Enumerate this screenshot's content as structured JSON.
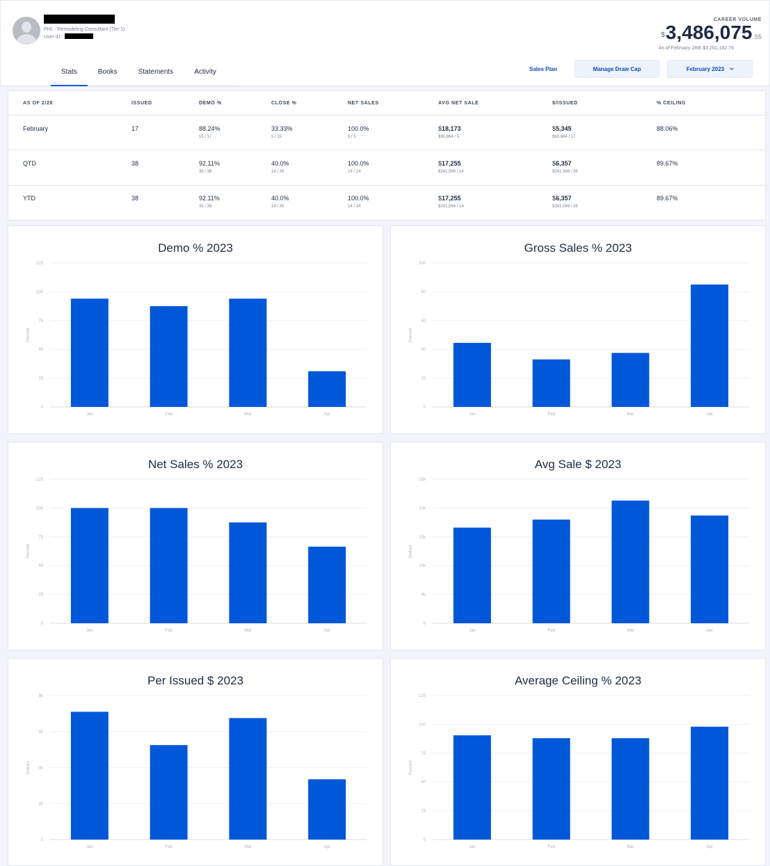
{
  "profile": {
    "role": "PHL · Remodeling Consultant (Tier 1)",
    "user_id_label": "User ID:"
  },
  "career": {
    "label": "CAREER VOLUME",
    "currency": "$",
    "amount": "3,486,075",
    "cents": ".55",
    "sub": "As of February 28th $3,261,182.76"
  },
  "tabs": [
    "Stats",
    "Books",
    "Statements",
    "Activity"
  ],
  "actions": {
    "sales_plan": "Sales Plan",
    "draw_cap": "Manage Draw Cap",
    "period": "February 2023"
  },
  "stats": {
    "headers": [
      "AS OF 2/28",
      "ISSUED",
      "DEMO %",
      "CLOSE %",
      "NET SALES",
      "AVG NET SALE",
      "$/ISSUED",
      "% CEILING"
    ],
    "rows": [
      {
        "label": "February",
        "issued": "17",
        "demo": "88.24%",
        "demo_sub": "15 / 17",
        "close": "33.33%",
        "close_sub": "5 / 15",
        "net": "100.0%",
        "net_sub": "5 / 5",
        "avg": "18,173",
        "avg_sub": "$90,864 / 5",
        "per": "5,345",
        "per_sub": "$90,864 / 17",
        "ceiling": "88.06%"
      },
      {
        "label": "QTD",
        "issued": "38",
        "demo": "92.11%",
        "demo_sub": "35 / 38",
        "close": "40.0%",
        "close_sub": "14 / 35",
        "net": "100.0%",
        "net_sub": "14 / 14",
        "avg": "17,255",
        "avg_sub": "$241,566 / 14",
        "per": "6,357",
        "per_sub": "$241,566 / 38",
        "ceiling": "89.67%"
      },
      {
        "label": "YTD",
        "issued": "38",
        "demo": "92.11%",
        "demo_sub": "35 / 38",
        "close": "40.0%",
        "close_sub": "14 / 35",
        "net": "100.0%",
        "net_sub": "14 / 14",
        "avg": "17,255",
        "avg_sub": "$241,566 / 14",
        "per": "6,357",
        "per_sub": "$241,566 / 38",
        "ceiling": "89.67%"
      }
    ]
  },
  "colors": {
    "bar": "#0057d8",
    "accent": "#0b4db5"
  },
  "chart_data": [
    {
      "type": "bar",
      "title": "Demo % 2023",
      "ylabel": "Percent",
      "categories": [
        "Jan",
        "Feb",
        "Mar",
        "Apr"
      ],
      "values": [
        94,
        87.5,
        94,
        31
      ],
      "ylim": [
        0,
        125
      ],
      "yticks": [
        "0",
        "25",
        "50",
        "75",
        "100",
        "125"
      ],
      "grid": true
    },
    {
      "type": "bar",
      "title": "Gross Sales % 2023",
      "ylabel": "Percent",
      "categories": [
        "Jan",
        "Feb",
        "Mar",
        "Apr"
      ],
      "values": [
        44.5,
        33,
        37.5,
        85
      ],
      "ylim": [
        0,
        100
      ],
      "yticks": [
        "0",
        "20",
        "40",
        "60",
        "80",
        "100"
      ],
      "grid": true
    },
    {
      "type": "bar",
      "title": "Net Sales % 2023",
      "ylabel": "Percent",
      "categories": [
        "Jan",
        "Feb",
        "Mar",
        "Apr"
      ],
      "values": [
        100,
        100,
        87.5,
        66.5
      ],
      "ylim": [
        0,
        125
      ],
      "yticks": [
        "0",
        "25",
        "50",
        "75",
        "100",
        "125"
      ],
      "grid": true
    },
    {
      "type": "bar",
      "title": "Avg Sale $ 2023",
      "ylabel": "Dollars",
      "categories": [
        "Jan",
        "Feb",
        "Mar",
        "Apr"
      ],
      "values": [
        16600,
        18000,
        21300,
        18700
      ],
      "ylim": [
        0,
        25000
      ],
      "yticks": [
        "0",
        "5k",
        "10k",
        "15k",
        "20k",
        "25k"
      ],
      "grid": true
    },
    {
      "type": "bar",
      "title": "Per Issued $ 2023",
      "ylabel": "Dollars",
      "categories": [
        "Jan",
        "Feb",
        "Mar",
        "Apr"
      ],
      "values": [
        7100,
        5250,
        6750,
        3350
      ],
      "ylim": [
        0,
        8000
      ],
      "yticks": [
        "0",
        "2k",
        "4k",
        "6k",
        "8k"
      ],
      "grid": true
    },
    {
      "type": "bar",
      "title": "Average Ceiling % 2023",
      "ylabel": "Percent",
      "categories": [
        "Jan",
        "Feb",
        "Mar",
        "Apr"
      ],
      "values": [
        90.5,
        88,
        88,
        98
      ],
      "ylim": [
        0,
        125
      ],
      "yticks": [
        "0",
        "25",
        "50",
        "75",
        "100",
        "125"
      ],
      "grid": true
    }
  ]
}
